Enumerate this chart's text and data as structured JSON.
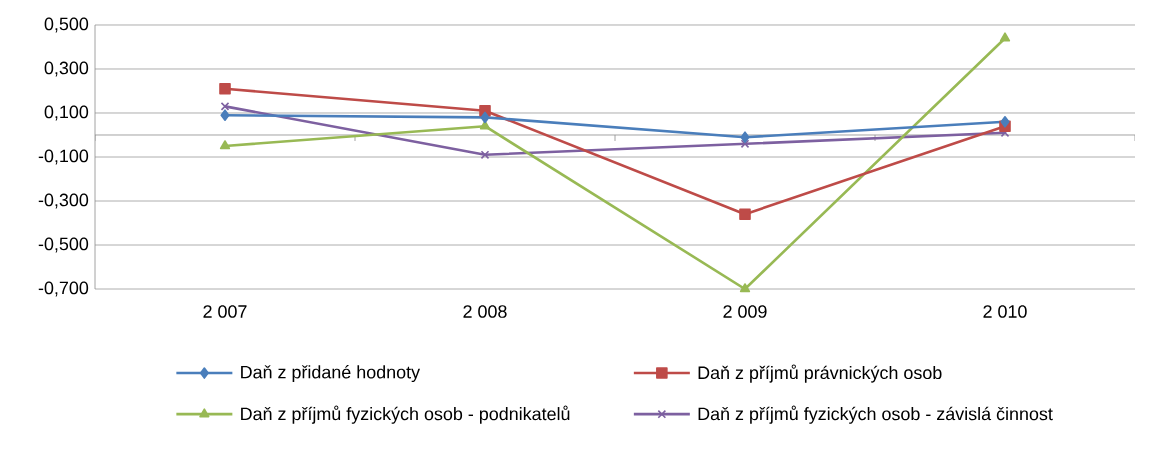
{
  "chart_data": {
    "type": "line",
    "categories": [
      "2 007",
      "2 008",
      "2 009",
      "2 010"
    ],
    "ylim": [
      -0.7,
      0.5
    ],
    "yticks": [
      {
        "value": 0.5,
        "label": "0,500"
      },
      {
        "value": 0.3,
        "label": "0,300"
      },
      {
        "value": 0.1,
        "label": "0,100"
      },
      {
        "value": -0.1,
        "label": "-0,100"
      },
      {
        "value": -0.3,
        "label": "-0,300"
      },
      {
        "value": -0.5,
        "label": "-0,500"
      },
      {
        "value": -0.7,
        "label": "-0,700"
      }
    ],
    "grid": "y",
    "legend": "bottom",
    "series": [
      {
        "name": "Daň z přidané hodnoty",
        "color": "#4a7ebb",
        "marker": "diamond",
        "values": [
          0.09,
          0.08,
          -0.01,
          0.06
        ]
      },
      {
        "name": "Daň z příjmů právnických osob",
        "color": "#be4b48",
        "marker": "square",
        "values": [
          0.21,
          0.11,
          -0.36,
          0.04
        ]
      },
      {
        "name": "Daň z příjmů fyzických osob - podnikatelů",
        "color": "#98b954",
        "marker": "triangle",
        "values": [
          -0.05,
          0.04,
          -0.7,
          0.44
        ]
      },
      {
        "name": "Daň z příjmů fyzických osob - závislá činnost",
        "color": "#7d60a0",
        "marker": "cross",
        "values": [
          0.13,
          -0.09,
          -0.04,
          0.01
        ]
      }
    ]
  }
}
